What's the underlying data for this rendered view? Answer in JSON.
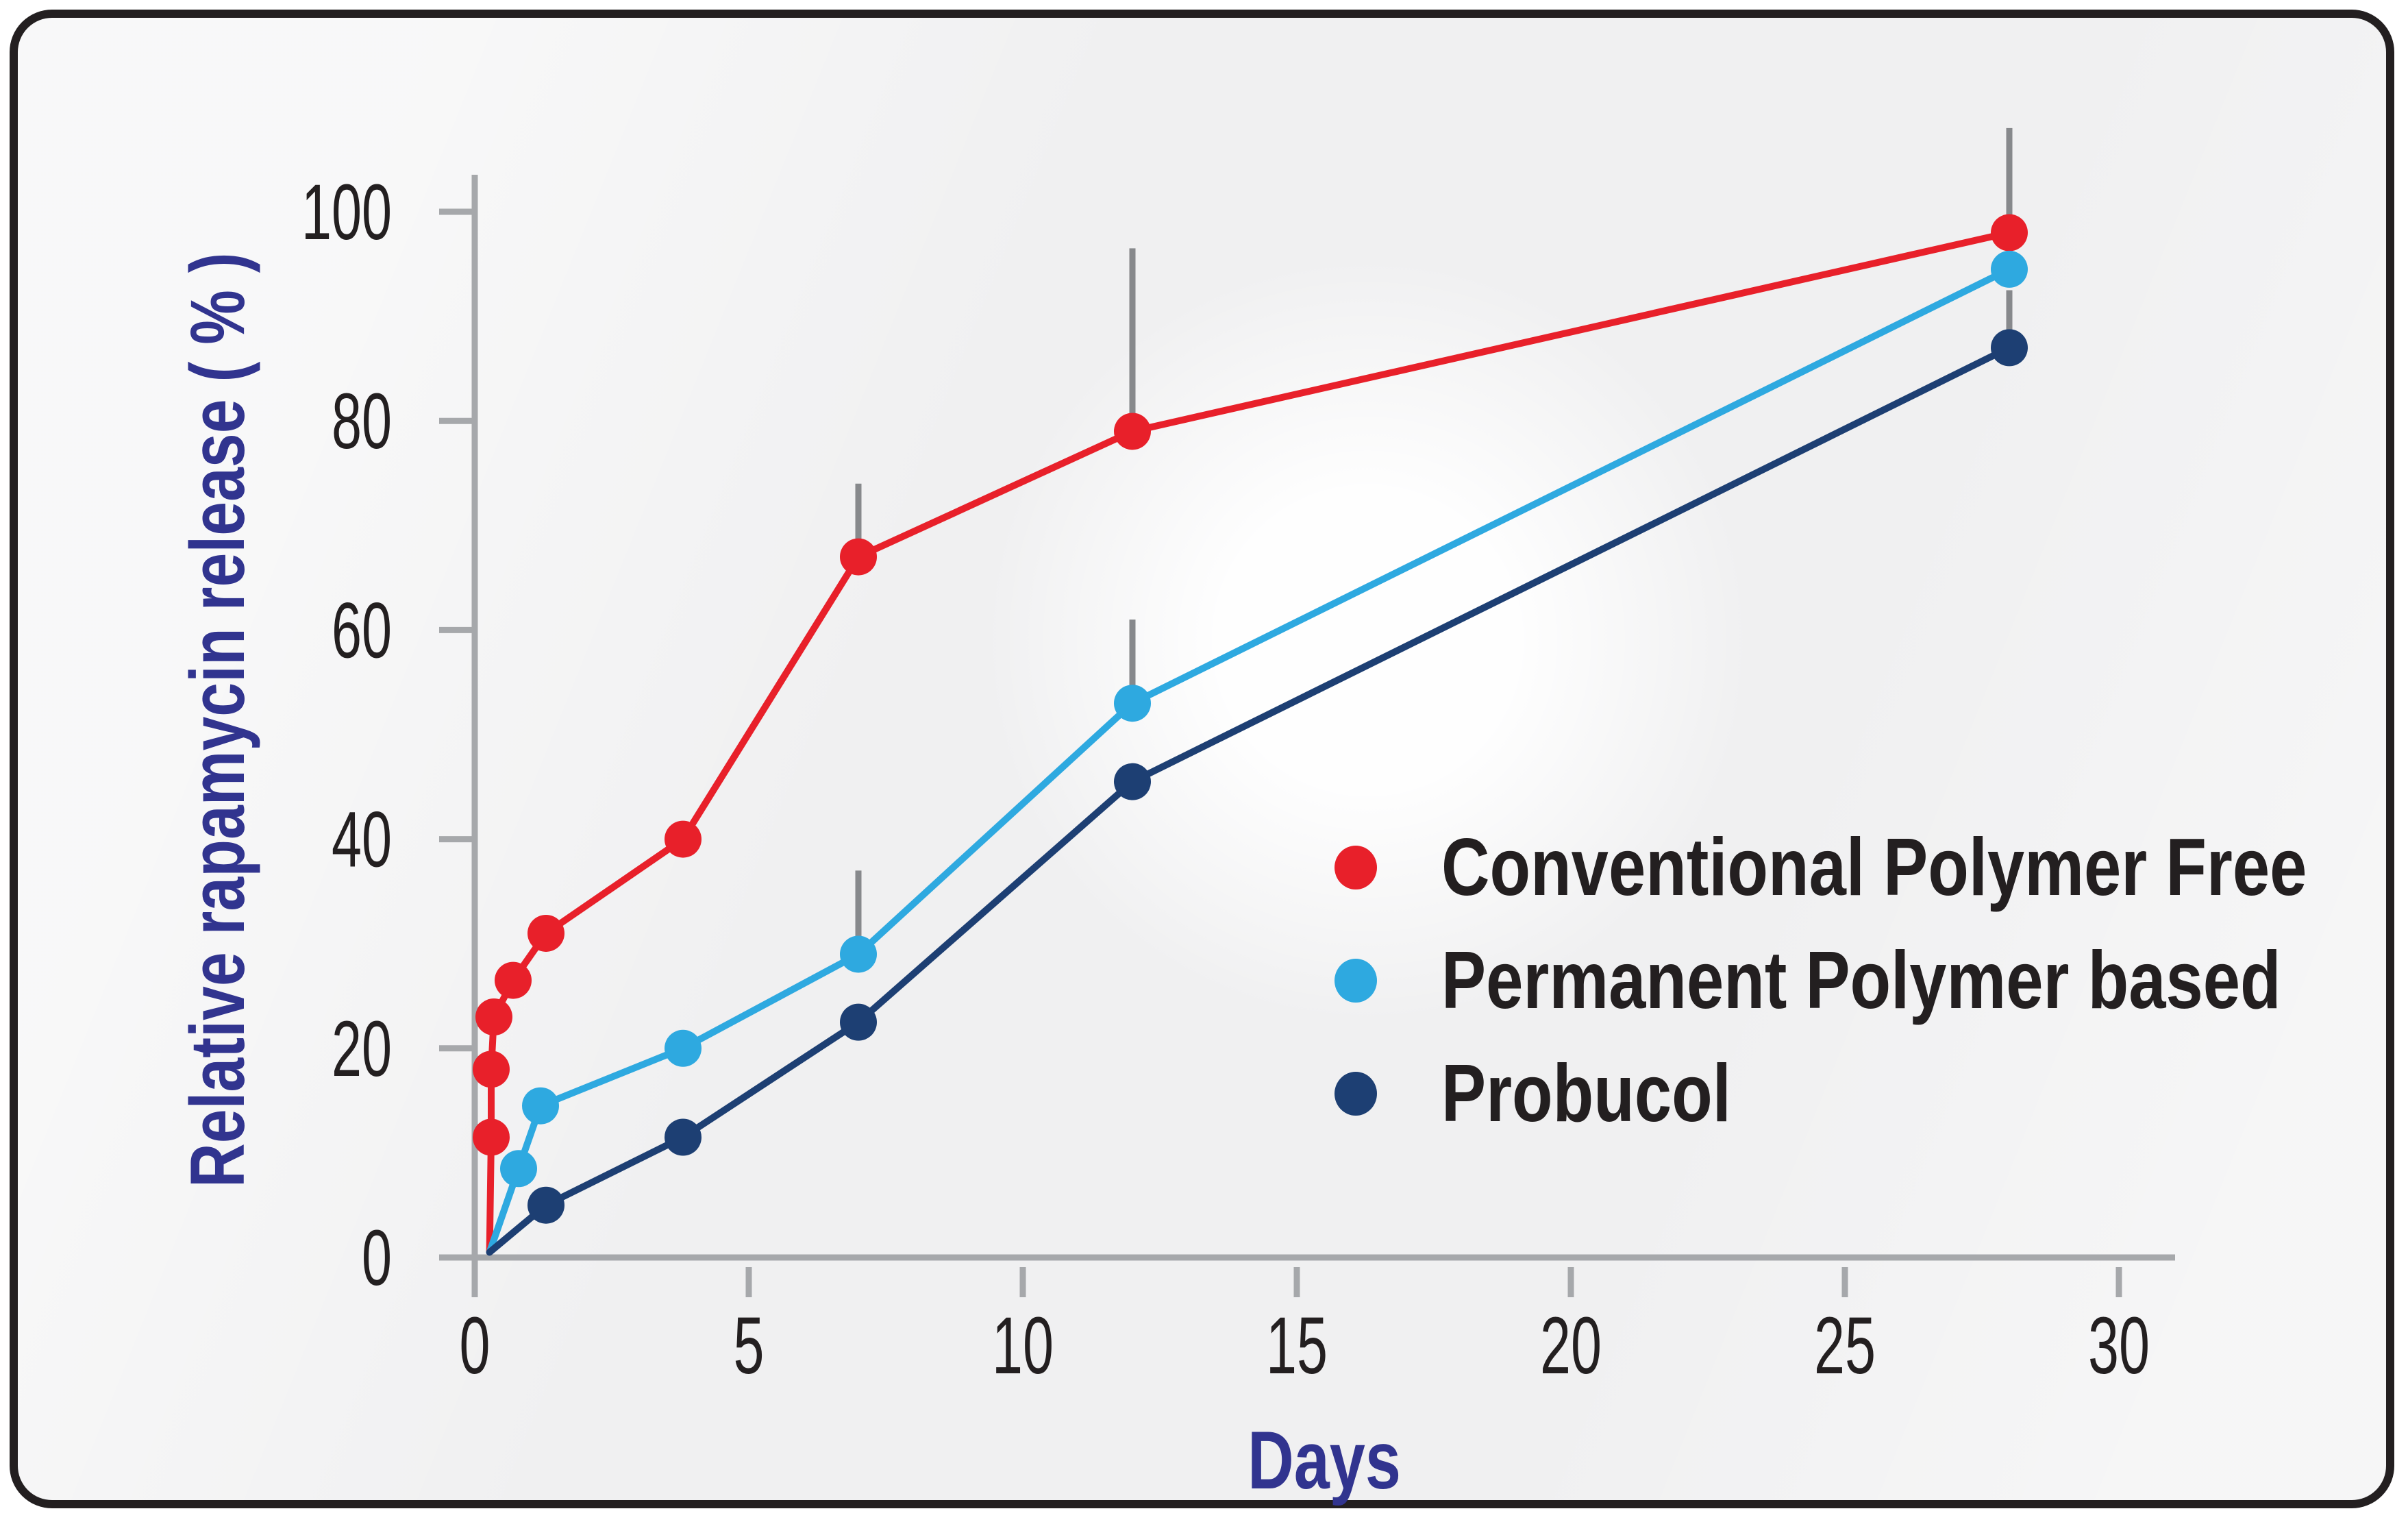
{
  "frame": {
    "page_background": "#ffffff",
    "card_background": "#f0f0f1",
    "border_color": "#231f20"
  },
  "colors": {
    "axis": "#a6a8ab",
    "error_bar": "#87898c",
    "tick_text": "#231f20",
    "axis_title_text": "#31348f",
    "legend_text": "#231f20"
  },
  "chart_data": {
    "type": "line",
    "title": "",
    "xlabel": "Days",
    "ylabel": "Relative rapamycin release ( % )",
    "xlim": [
      0,
      31
    ],
    "ylim": [
      0,
      103.5
    ],
    "x_ticks": [
      0,
      5,
      10,
      15,
      20,
      25,
      30
    ],
    "y_ticks": [
      0,
      20,
      40,
      60,
      80,
      100
    ],
    "grid": false,
    "legend_position": "middle-right",
    "error_bars_direction": "up",
    "series": [
      {
        "name": "Conventional Polymer Free",
        "color": "#e8202a",
        "line_start": [
          0.27,
          0.5
        ],
        "x": [
          0.3,
          0.3,
          0.35,
          0.7,
          1.3,
          3.8,
          7,
          12,
          28
        ],
        "y": [
          11.5,
          18,
          23,
          26.5,
          31,
          40,
          67,
          79,
          98
        ],
        "error_up": [
          null,
          null,
          null,
          null,
          null,
          null,
          74,
          96.5,
          108
        ]
      },
      {
        "name": "Permanent Polymer based",
        "color": "#2ea9e0",
        "line_start": [
          0.27,
          0.5
        ],
        "x": [
          0.8,
          1.2,
          3.8,
          7,
          12,
          28
        ],
        "y": [
          8.5,
          14.5,
          20,
          29,
          53,
          94.5
        ],
        "error_up": [
          null,
          null,
          null,
          37,
          61,
          null
        ]
      },
      {
        "name": "Probucol",
        "color": "#1d3f73",
        "line_start": [
          0.27,
          0.5
        ],
        "x": [
          1.3,
          3.8,
          7,
          12,
          28
        ],
        "y": [
          5,
          11.5,
          22.5,
          45.5,
          87
        ],
        "error_up": [
          null,
          null,
          null,
          null,
          92.5
        ]
      }
    ]
  }
}
